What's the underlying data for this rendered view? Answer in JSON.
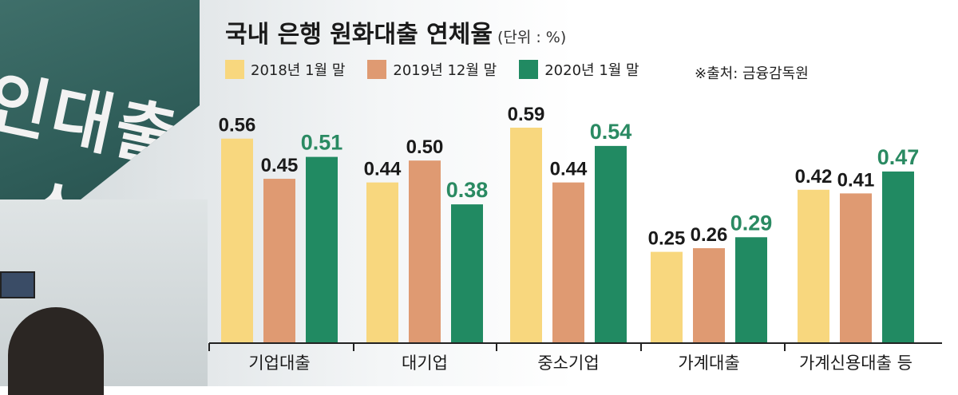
{
  "title": "국내 은행 원화대출 연체율",
  "unit": "(단위 : %)",
  "source": "※출처: 금융감독원",
  "background_sign_text": "인대출 · 소",
  "colors": {
    "2018": "#f8d77e",
    "2019": "#df9a72",
    "2020": "#218a62",
    "label_dark": "#1a1a1a",
    "label_green": "#2a8a62",
    "axis": "#222222"
  },
  "chart_data": {
    "type": "bar",
    "categories": [
      "기업대출",
      "대기업",
      "중소기업",
      "가계대출",
      "가계신용대출 등"
    ],
    "series": [
      {
        "name": "2018년 1월 말",
        "values": [
          0.56,
          0.44,
          0.59,
          0.25,
          0.42
        ]
      },
      {
        "name": "2019년 12월 말",
        "values": [
          0.45,
          0.5,
          0.44,
          0.26,
          0.41
        ]
      },
      {
        "name": "2020년 1월 말",
        "values": [
          0.51,
          0.38,
          0.54,
          0.29,
          0.47
        ]
      }
    ],
    "value_labels": [
      [
        "0.56",
        "0.44",
        "0.59",
        "0.25",
        "0.42"
      ],
      [
        "0.45",
        "0.50",
        "0.44",
        "0.26",
        "0.41"
      ],
      [
        "0.51",
        "0.38",
        "0.54",
        "0.29",
        "0.47"
      ]
    ],
    "ylim": [
      0,
      0.6
    ],
    "legend": "top-left",
    "grid": false
  }
}
